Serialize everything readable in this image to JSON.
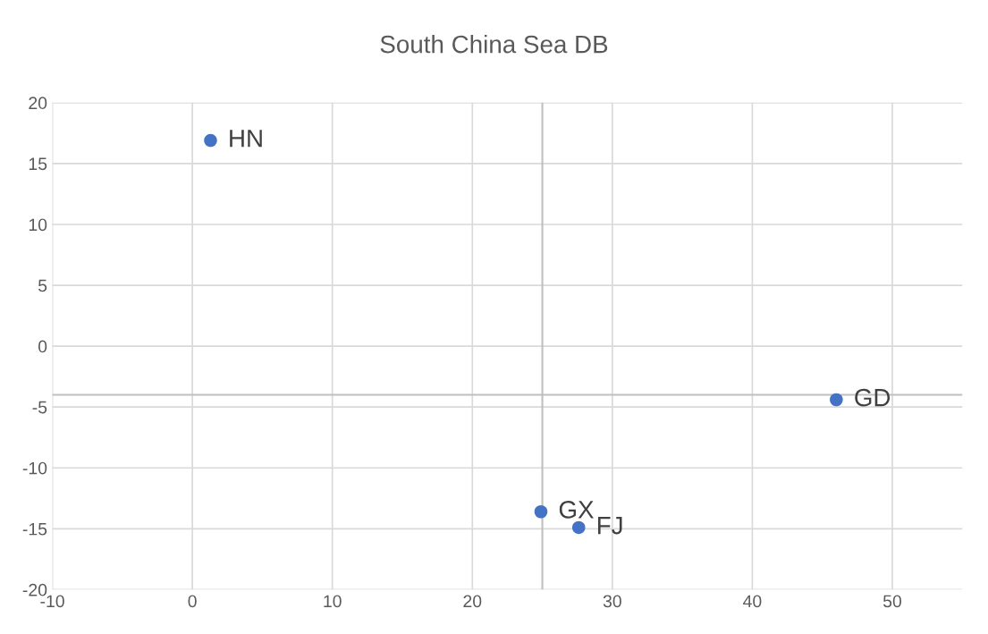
{
  "chart_data": {
    "type": "scatter",
    "title": "South China Sea DB",
    "x": [
      1.3,
      46.0,
      24.9,
      27.6
    ],
    "values": [
      16.9,
      -4.4,
      -13.6,
      -14.9
    ],
    "color": "#4472c4",
    "marker": "circle",
    "xlim": [
      -10,
      55
    ],
    "xticks": [
      -10,
      0,
      10,
      20,
      30,
      40,
      50
    ],
    "ylim": [
      -20,
      20
    ],
    "yticks": [
      -20,
      -15,
      -10,
      -5,
      0,
      5,
      10,
      15,
      20
    ],
    "grid": true,
    "ref_lines": [
      {
        "axis": "y",
        "value": -4,
        "color": "#bfbfbf"
      },
      {
        "axis": "x",
        "value": 25,
        "color": "#bfbfbf"
      }
    ],
    "annotations": [
      {
        "text": "HN",
        "x": 1.3,
        "y": 16.9
      },
      {
        "text": "GD",
        "x": 46.0,
        "y": -4.4
      },
      {
        "text": "GX",
        "x": 24.9,
        "y": -13.6
      },
      {
        "text": "FJ",
        "x": 27.6,
        "y": -14.9
      }
    ]
  }
}
